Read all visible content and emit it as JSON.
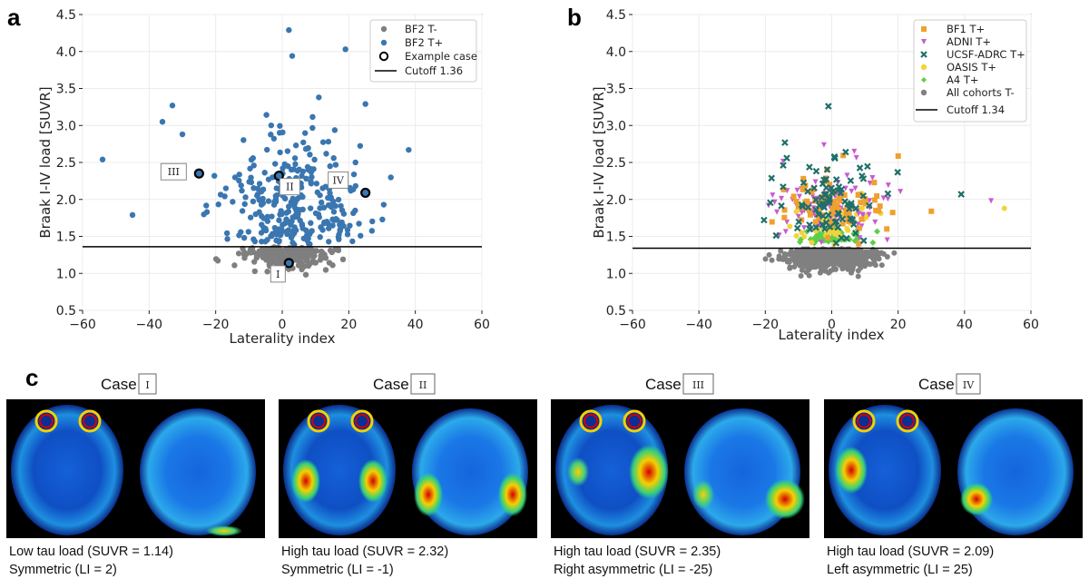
{
  "panels": {
    "a": "a",
    "b": "b",
    "c": "c"
  },
  "colors": {
    "bf2_tneg": "#7f7f7f",
    "bf2_tpos": "#3a76b0",
    "bf1": "#f0a030",
    "adni": "#c85bd0",
    "ucsf": "#1f6f6a",
    "oasis": "#f2d43a",
    "a4": "#5ccf48",
    "all_tneg": "#808080"
  },
  "chart_data": [
    {
      "type": "scatter",
      "panel": "a",
      "xlabel": "Laterality index",
      "ylabel": "Braak I-IV load [SUVR]",
      "xlim": [
        -60,
        60
      ],
      "ylim": [
        0.5,
        4.5
      ],
      "xticks": [
        "−60",
        "−40",
        "−20",
        "0",
        "20",
        "40",
        "60"
      ],
      "yticks": [
        "0.5",
        "1.0",
        "1.5",
        "2.0",
        "2.5",
        "3.0",
        "3.5",
        "4.0",
        "4.5"
      ],
      "grid": true,
      "legend_position": "top-right",
      "legend": [
        "BF2 T-",
        "BF2 T+",
        "Example case",
        "Cutoff 1.36"
      ],
      "cutoff": 1.36,
      "example_cases": [
        {
          "label": "I",
          "x": 2,
          "y": 1.14
        },
        {
          "label": "II",
          "x": -1,
          "y": 2.32
        },
        {
          "label": "III",
          "x": -25,
          "y": 2.35
        },
        {
          "label": "IV",
          "x": 25,
          "y": 2.09
        }
      ],
      "series_tpos_extremes": [
        {
          "x": -54,
          "y": 2.54
        },
        {
          "x": -45,
          "y": 1.79
        },
        {
          "x": -36,
          "y": 3.05
        },
        {
          "x": -33,
          "y": 3.27
        },
        {
          "x": -30,
          "y": 2.88
        },
        {
          "x": 2,
          "y": 4.29
        },
        {
          "x": 3,
          "y": 3.94
        },
        {
          "x": 19,
          "y": 4.03
        },
        {
          "x": 38,
          "y": 2.67
        },
        {
          "x": 25,
          "y": 3.29
        },
        {
          "x": 11,
          "y": 3.38
        }
      ]
    },
    {
      "type": "scatter",
      "panel": "b",
      "xlabel": "Laterality index",
      "ylabel": "Braak I-IV load [SUVR]",
      "xlim": [
        -60,
        60
      ],
      "ylim": [
        0.5,
        4.5
      ],
      "xticks": [
        "−60",
        "−40",
        "−20",
        "0",
        "20",
        "40",
        "60"
      ],
      "yticks": [
        "0.5",
        "1.0",
        "1.5",
        "2.0",
        "2.5",
        "3.0",
        "3.5",
        "4.0",
        "4.5"
      ],
      "grid": true,
      "legend_position": "top-right",
      "legend": [
        "BF1 T+",
        "ADNI T+",
        "UCSF-ADRC T+",
        "OASIS T+",
        "A4 T+",
        "All cohorts T-",
        "Cutoff 1.34"
      ],
      "cutoff": 1.34,
      "series_extremes": [
        {
          "name": "UCSF-ADRC T+",
          "x": -1,
          "y": 3.26
        },
        {
          "name": "UCSF-ADRC T+",
          "x": 39,
          "y": 2.07
        },
        {
          "name": "ADNI T+",
          "x": 48,
          "y": 1.98
        },
        {
          "name": "OASIS T+",
          "x": 52,
          "y": 1.88
        },
        {
          "name": "BF1 T+",
          "x": 30,
          "y": 1.84
        }
      ]
    }
  ],
  "cases": [
    {
      "roman": "I",
      "title": "Case",
      "line1": "Low tau load (SUVR = 1.14)",
      "line2": "Symmetric (LI = 2)"
    },
    {
      "roman": "II",
      "title": "Case",
      "line1": "High tau load (SUVR = 2.32)",
      "line2": "Symmetric (LI = -1)"
    },
    {
      "roman": "III",
      "title": "Case",
      "line1": "High tau load (SUVR = 2.35)",
      "line2": "Right asymmetric (LI = -25)"
    },
    {
      "roman": "IV",
      "title": "Case",
      "line1": "High tau load (SUVR = 2.09)",
      "line2": "Left asymmetric (LI = 25)"
    }
  ]
}
